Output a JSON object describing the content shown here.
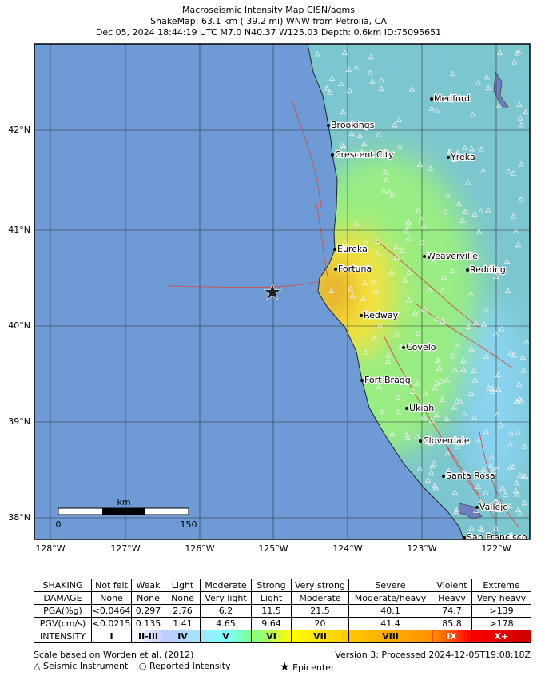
{
  "header": {
    "title": "Macroseismic Intensity Map CISN/aqms",
    "subtitle": "ShakeMap: 63.1 km (  39.2 mi) WNW from Petrolia, CA",
    "event": "Dec 05, 2024 18:44:19 UTC M7.0 N40.37 W125.03 Depth: 0.6km ID:75095651"
  },
  "map": {
    "lat_labels": [
      "42°N",
      "41°N",
      "40°N",
      "39°N",
      "38°N"
    ],
    "lon_labels": [
      "128°W",
      "127°W",
      "126°W",
      "125°W",
      "124°W",
      "123°W",
      "122°W"
    ],
    "cities": [
      "Medford",
      "Brookings",
      "Crescent City",
      "Yreka",
      "Eureka",
      "Weaverville",
      "Fortuna",
      "Redding",
      "Redway",
      "Covelo",
      "Fort Bragg",
      "Ukiah",
      "Cloverdale",
      "Santa Rosa",
      "Vallejo",
      "San Francisco"
    ],
    "scale_bar": {
      "unit": "km",
      "start": 0,
      "end": 150
    }
  },
  "legend": {
    "rows": [
      [
        "SHAKING",
        "Not felt",
        "Weak",
        "Light",
        "Moderate",
        "Strong",
        "Very strong",
        "Severe",
        "Violent",
        "Extreme"
      ],
      [
        "DAMAGE",
        "None",
        "None",
        "None",
        "Very light",
        "Light",
        "Moderate",
        "Moderate/heavy",
        "Heavy",
        "Very heavy"
      ],
      [
        "PGA(%g)",
        "<0.0464",
        "0.297",
        "2.76",
        "6.2",
        "11.5",
        "21.5",
        "40.1",
        "74.7",
        ">139"
      ],
      [
        "PGV(cm/s)",
        "<0.0215",
        "0.135",
        "1.41",
        "4.65",
        "9.64",
        "20",
        "41.4",
        "85.8",
        ">178"
      ],
      [
        "INTENSITY",
        "I",
        "II-III",
        "IV",
        "V",
        "VI",
        "VII",
        "VIII",
        "IX",
        "X+"
      ]
    ]
  },
  "footer": {
    "reference": "Scale based on Worden et al. (2012)",
    "version": "Version 3: Processed 2024-12-05T19:08:18Z",
    "symbols": [
      "Seismic Instrument",
      "Reported Intensity",
      "Epicenter"
    ]
  }
}
